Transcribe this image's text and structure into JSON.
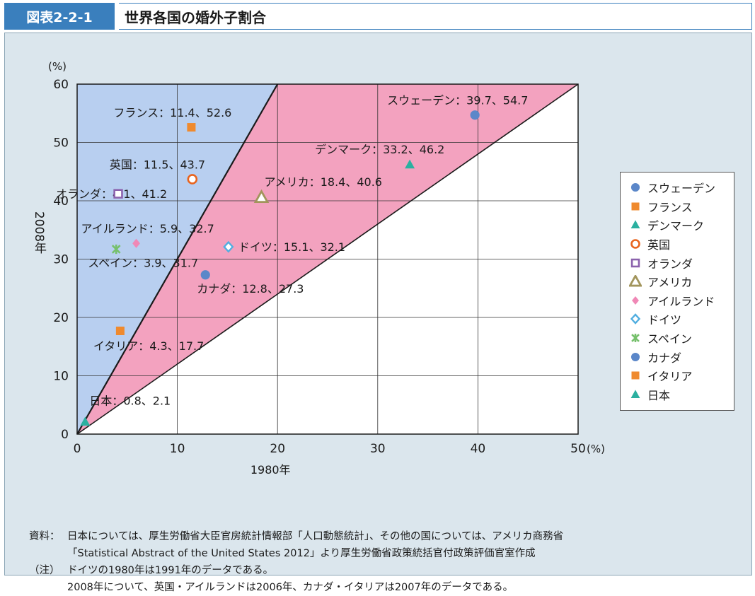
{
  "header": {
    "badge": "図表2-2-1",
    "title": "世界各国の婚外子割合"
  },
  "colors": {
    "blue_region": "#b8cff0",
    "pink_region": "#f3a2bf",
    "badge": "#3a7fbd",
    "panel": "#dbe6ed"
  },
  "chart_data": {
    "type": "scatter",
    "xlabel": "1980年",
    "ylabel": "2008年",
    "x_unit": "(%)",
    "y_unit": "(%)",
    "xlim": [
      0,
      50
    ],
    "ylim": [
      0,
      60
    ],
    "x_ticks": [
      0,
      10,
      20,
      30,
      40,
      50
    ],
    "y_ticks": [
      0,
      10,
      20,
      30,
      40,
      50,
      60
    ],
    "grid": true,
    "legend_position": "right",
    "regions": [
      {
        "name": "blue",
        "color": "#b8cff0",
        "polygon": [
          [
            0,
            0
          ],
          [
            0,
            60
          ],
          [
            20,
            60
          ],
          [
            0,
            0
          ]
        ]
      },
      {
        "name": "pink",
        "color": "#f3a2bf",
        "polygon": [
          [
            0,
            0
          ],
          [
            20,
            60
          ],
          [
            50,
            60
          ],
          [
            0,
            0
          ]
        ]
      }
    ],
    "series": [
      {
        "name": "スウェーデン",
        "x": 39.7,
        "y": 54.7,
        "marker": "circle",
        "color": "#5b87c9",
        "label": "スウェーデン：39.7、54.7"
      },
      {
        "name": "フランス",
        "x": 11.4,
        "y": 52.6,
        "marker": "square",
        "color": "#ef8a2e",
        "label": "フランス：11.4、52.6"
      },
      {
        "name": "デンマーク",
        "x": 33.2,
        "y": 46.2,
        "marker": "triangle",
        "color": "#2bb0a0",
        "label": "デンマーク：33.2、46.2"
      },
      {
        "name": "英国",
        "x": 11.5,
        "y": 43.7,
        "marker": "ring",
        "color": "#e8641e",
        "label": "英国：11.5、43.7"
      },
      {
        "name": "オランダ",
        "x": 4.1,
        "y": 41.2,
        "marker": "open-square",
        "color": "#8b62ad",
        "label": "オランダ：4.1、41.2"
      },
      {
        "name": "アメリカ",
        "x": 18.4,
        "y": 40.6,
        "marker": "open-triangle",
        "color": "#a2955c",
        "label": "アメリカ：18.4、40.6"
      },
      {
        "name": "アイルランド",
        "x": 5.9,
        "y": 32.7,
        "marker": "diamond",
        "color": "#f088b6",
        "label": "アイルランド：5.9、32.7"
      },
      {
        "name": "ドイツ",
        "x": 15.1,
        "y": 32.1,
        "marker": "open-diamond",
        "color": "#52aee0",
        "label": "ドイツ：15.1、32.1"
      },
      {
        "name": "スペイン",
        "x": 3.9,
        "y": 31.7,
        "marker": "star",
        "color": "#76c06c",
        "label": "スペイン：3.9、31.7"
      },
      {
        "name": "カナダ",
        "x": 12.8,
        "y": 27.3,
        "marker": "circle",
        "color": "#5b87c9",
        "label": "カナダ：12.8、27.3"
      },
      {
        "name": "イタリア",
        "x": 4.3,
        "y": 17.7,
        "marker": "square",
        "color": "#ef8a2e",
        "label": "イタリア：4.3、17.7"
      },
      {
        "name": "日本",
        "x": 0.8,
        "y": 2.1,
        "marker": "triangle",
        "color": "#2bb0a0",
        "label": "日本：0.8、2.1"
      }
    ]
  },
  "notes": [
    {
      "head": "資料：",
      "text": "日本については、厚生労働省大臣官房統計情報部「人口動態統計」、その他の国については、アメリカ商務省"
    },
    {
      "head": "",
      "text": "「Statistical Abstract of the United States 2012」より厚生労働省政策統括官付政策評価官室作成"
    },
    {
      "head": "（注）",
      "text": "ドイツの1980年は1991年のデータである。"
    },
    {
      "head": "",
      "text": "2008年について、英国・アイルランドは2006年、カナダ・イタリアは2007年のデータである。"
    }
  ]
}
